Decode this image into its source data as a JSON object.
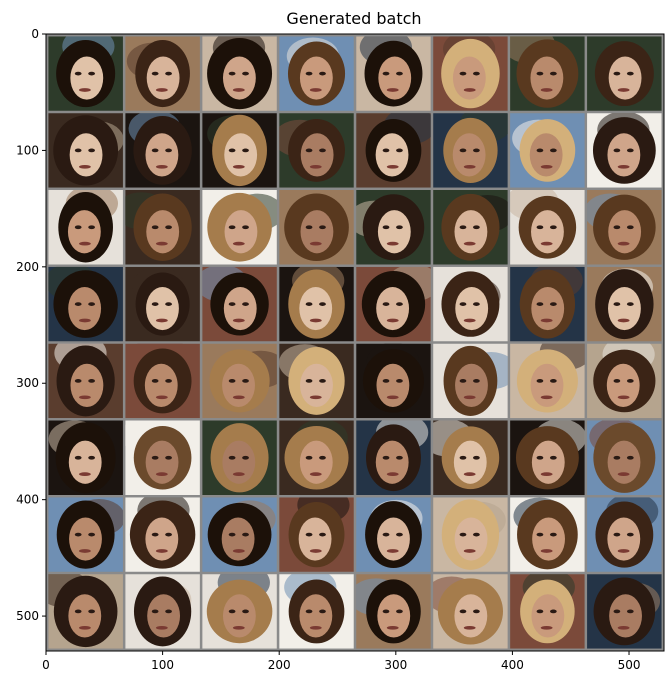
{
  "chart_data": {
    "type": "image",
    "title": "Generated batch",
    "xlim": [
      0,
      530
    ],
    "ylim": [
      530,
      0
    ],
    "xticks": [
      0,
      100,
      200,
      300,
      400,
      500
    ],
    "yticks": [
      0,
      100,
      200,
      300,
      400,
      500
    ],
    "grid": {
      "rows": 8,
      "cols": 8,
      "cell": 66,
      "padding": 2,
      "content": "generated face images"
    },
    "grid_border_color": "#8a8a8a"
  }
}
